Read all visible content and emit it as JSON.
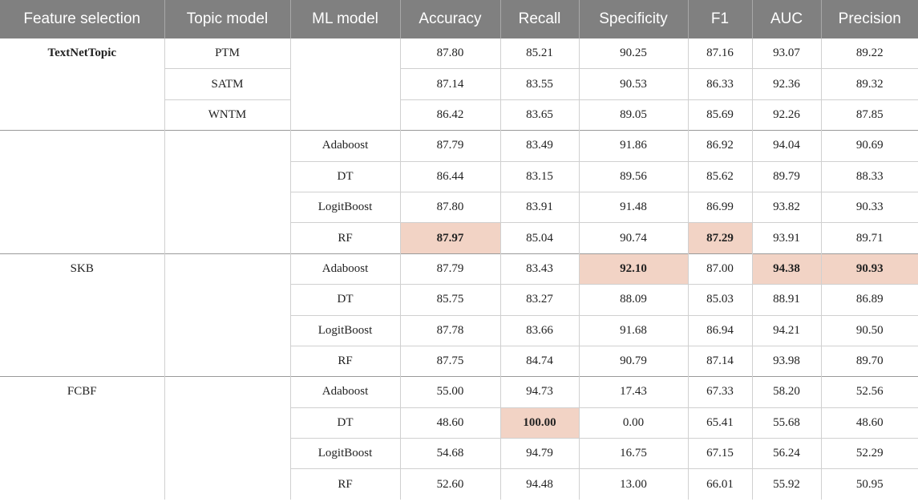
{
  "table": {
    "headers": [
      "Feature selection",
      "Topic model",
      "ML model",
      "Accuracy",
      "Recall",
      "Specificity",
      "F1",
      "AUC",
      "Precision"
    ],
    "highlight_color": "#f2d3c5",
    "header_color": "#808080",
    "groups": [
      {
        "feature": "TextNetTopic",
        "feature_bold": true,
        "rows": [
          {
            "topic": "PTM",
            "ml": "",
            "values": [
              "87.80",
              "85.21",
              "90.25",
              "87.16",
              "93.07",
              "89.22"
            ],
            "highlight": []
          },
          {
            "topic": "SATM",
            "ml": "",
            "values": [
              "87.14",
              "83.55",
              "90.53",
              "86.33",
              "92.36",
              "89.32"
            ],
            "highlight": []
          },
          {
            "topic": "WNTM",
            "ml": "",
            "values": [
              "86.42",
              "83.65",
              "89.05",
              "85.69",
              "92.26",
              "87.85"
            ],
            "highlight": []
          }
        ]
      },
      {
        "feature": "",
        "feature_bold": false,
        "rows": [
          {
            "topic": "",
            "ml": "Adaboost",
            "values": [
              "87.79",
              "83.49",
              "91.86",
              "86.92",
              "94.04",
              "90.69"
            ],
            "highlight": []
          },
          {
            "topic": "",
            "ml": "DT",
            "values": [
              "86.44",
              "83.15",
              "89.56",
              "85.62",
              "89.79",
              "88.33"
            ],
            "highlight": []
          },
          {
            "topic": "",
            "ml": "LogitBoost",
            "values": [
              "87.80",
              "83.91",
              "91.48",
              "86.99",
              "93.82",
              "90.33"
            ],
            "highlight": []
          },
          {
            "topic": "",
            "ml": "RF",
            "values": [
              "87.97",
              "85.04",
              "90.74",
              "87.29",
              "93.91",
              "89.71"
            ],
            "highlight": [
              0,
              3
            ]
          }
        ]
      },
      {
        "feature": "SKB",
        "feature_bold": false,
        "rows": [
          {
            "topic": "",
            "ml": "Adaboost",
            "values": [
              "87.79",
              "83.43",
              "92.10",
              "87.00",
              "94.38",
              "90.93"
            ],
            "highlight": [
              2,
              4,
              5
            ]
          },
          {
            "topic": "",
            "ml": "DT",
            "values": [
              "85.75",
              "83.27",
              "88.09",
              "85.03",
              "88.91",
              "86.89"
            ],
            "highlight": []
          },
          {
            "topic": "",
            "ml": "LogitBoost",
            "values": [
              "87.78",
              "83.66",
              "91.68",
              "86.94",
              "94.21",
              "90.50"
            ],
            "highlight": []
          },
          {
            "topic": "",
            "ml": "RF",
            "values": [
              "87.75",
              "84.74",
              "90.79",
              "87.14",
              "93.98",
              "89.70"
            ],
            "highlight": []
          }
        ]
      },
      {
        "feature": "FCBF",
        "feature_bold": false,
        "rows": [
          {
            "topic": "",
            "ml": "Adaboost",
            "values": [
              "55.00",
              "94.73",
              "17.43",
              "67.33",
              "58.20",
              "52.56"
            ],
            "highlight": []
          },
          {
            "topic": "",
            "ml": "DT",
            "values": [
              "48.60",
              "100.00",
              "0.00",
              "65.41",
              "55.68",
              "48.60"
            ],
            "highlight": [
              1
            ]
          },
          {
            "topic": "",
            "ml": "LogitBoost",
            "values": [
              "54.68",
              "94.79",
              "16.75",
              "67.15",
              "56.24",
              "52.29"
            ],
            "highlight": []
          },
          {
            "topic": "",
            "ml": "RF",
            "values": [
              "52.60",
              "94.48",
              "13.00",
              "66.01",
              "55.92",
              "50.95"
            ],
            "highlight": []
          }
        ]
      }
    ]
  }
}
